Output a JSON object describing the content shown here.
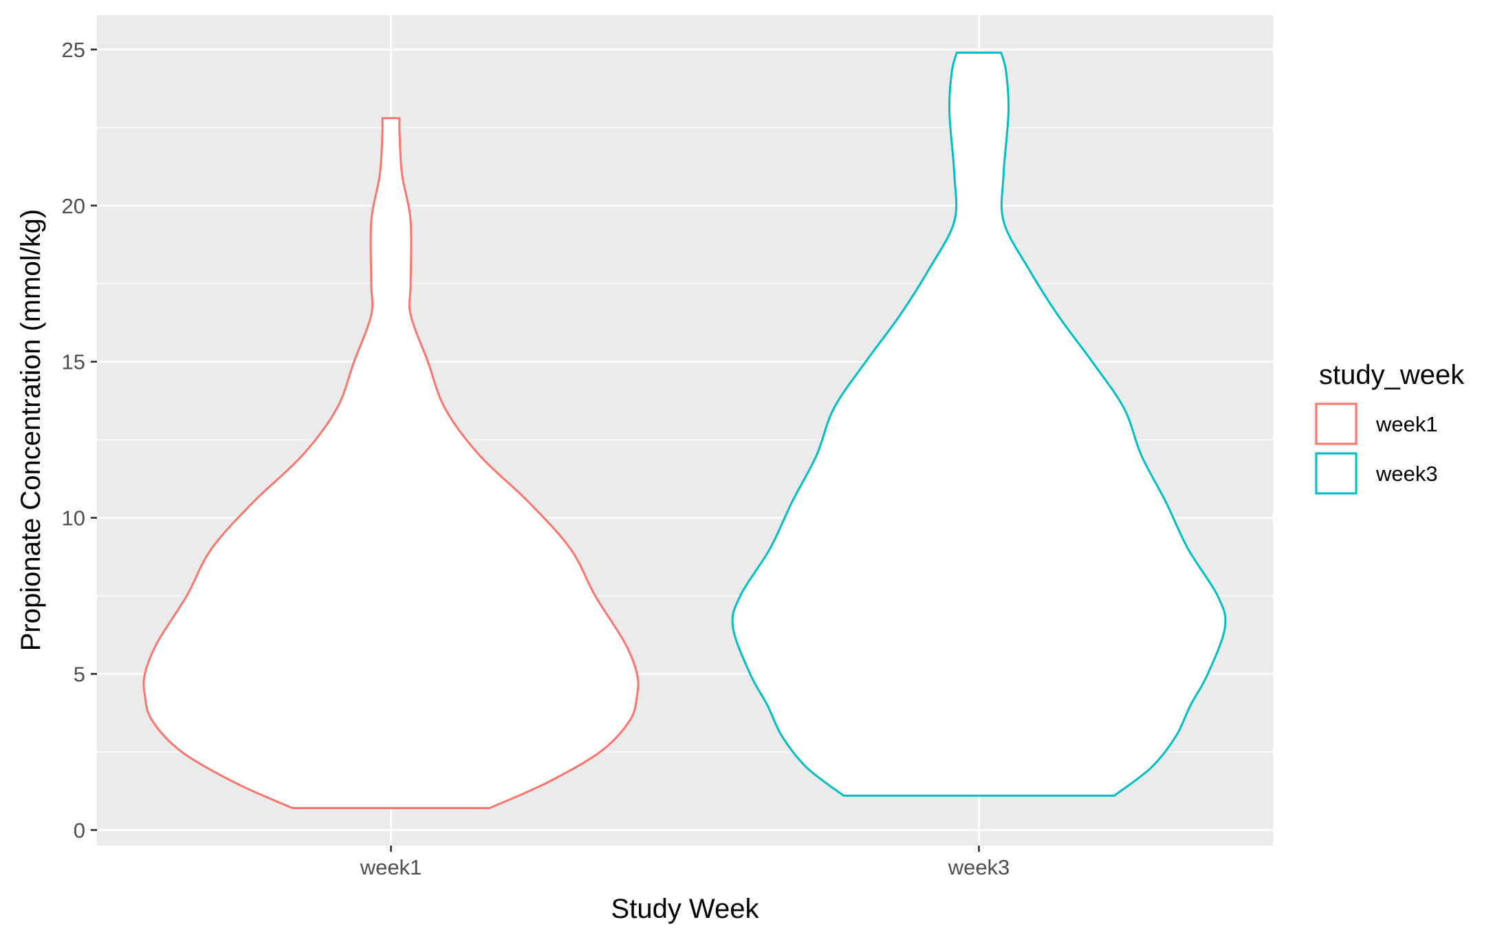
{
  "chart_data": {
    "type": "violin",
    "title": "",
    "xlabel": "Study Week",
    "ylabel": "Propionate Concentration (mmol/kg)",
    "categories": [
      "week1",
      "week3"
    ],
    "ylim": [
      -0.5,
      26.1
    ],
    "yticks": [
      0,
      5,
      10,
      15,
      20,
      25
    ],
    "grid": true,
    "legend": {
      "title": "study_week",
      "position": "right",
      "entries": [
        "week1",
        "week3"
      ]
    },
    "colors": {
      "week1": "#F8766D",
      "week3": "#00BFC4",
      "panel": "#EBEBEB",
      "grid": "#FFFFFF"
    },
    "series": [
      {
        "name": "week1",
        "min": 0.7,
        "max": 22.8,
        "density_profile": [
          [
            0.7,
            0.4
          ],
          [
            1.5,
            0.63
          ],
          [
            2.5,
            0.85
          ],
          [
            3.5,
            0.97
          ],
          [
            4.3,
            1.0
          ],
          [
            5.0,
            1.0
          ],
          [
            6.0,
            0.95
          ],
          [
            7.5,
            0.83
          ],
          [
            9.0,
            0.73
          ],
          [
            10.5,
            0.56
          ],
          [
            12.0,
            0.36
          ],
          [
            13.5,
            0.22
          ],
          [
            15.0,
            0.15
          ],
          [
            16.5,
            0.08
          ],
          [
            17.5,
            0.08
          ],
          [
            19.5,
            0.08
          ],
          [
            21.0,
            0.045
          ],
          [
            22.3,
            0.035
          ],
          [
            22.8,
            0.035
          ]
        ]
      },
      {
        "name": "week3",
        "min": 1.1,
        "max": 24.9,
        "density_profile": [
          [
            1.1,
            0.55
          ],
          [
            2.0,
            0.7
          ],
          [
            3.0,
            0.8
          ],
          [
            4.0,
            0.86
          ],
          [
            5.0,
            0.93
          ],
          [
            6.5,
            1.0
          ],
          [
            7.5,
            0.97
          ],
          [
            9.0,
            0.85
          ],
          [
            10.5,
            0.76
          ],
          [
            12.0,
            0.66
          ],
          [
            13.5,
            0.59
          ],
          [
            15.0,
            0.46
          ],
          [
            16.5,
            0.32
          ],
          [
            18.0,
            0.2
          ],
          [
            19.5,
            0.1
          ],
          [
            21.0,
            0.1
          ],
          [
            23.0,
            0.12
          ],
          [
            24.3,
            0.11
          ],
          [
            24.9,
            0.09
          ]
        ]
      }
    ]
  }
}
